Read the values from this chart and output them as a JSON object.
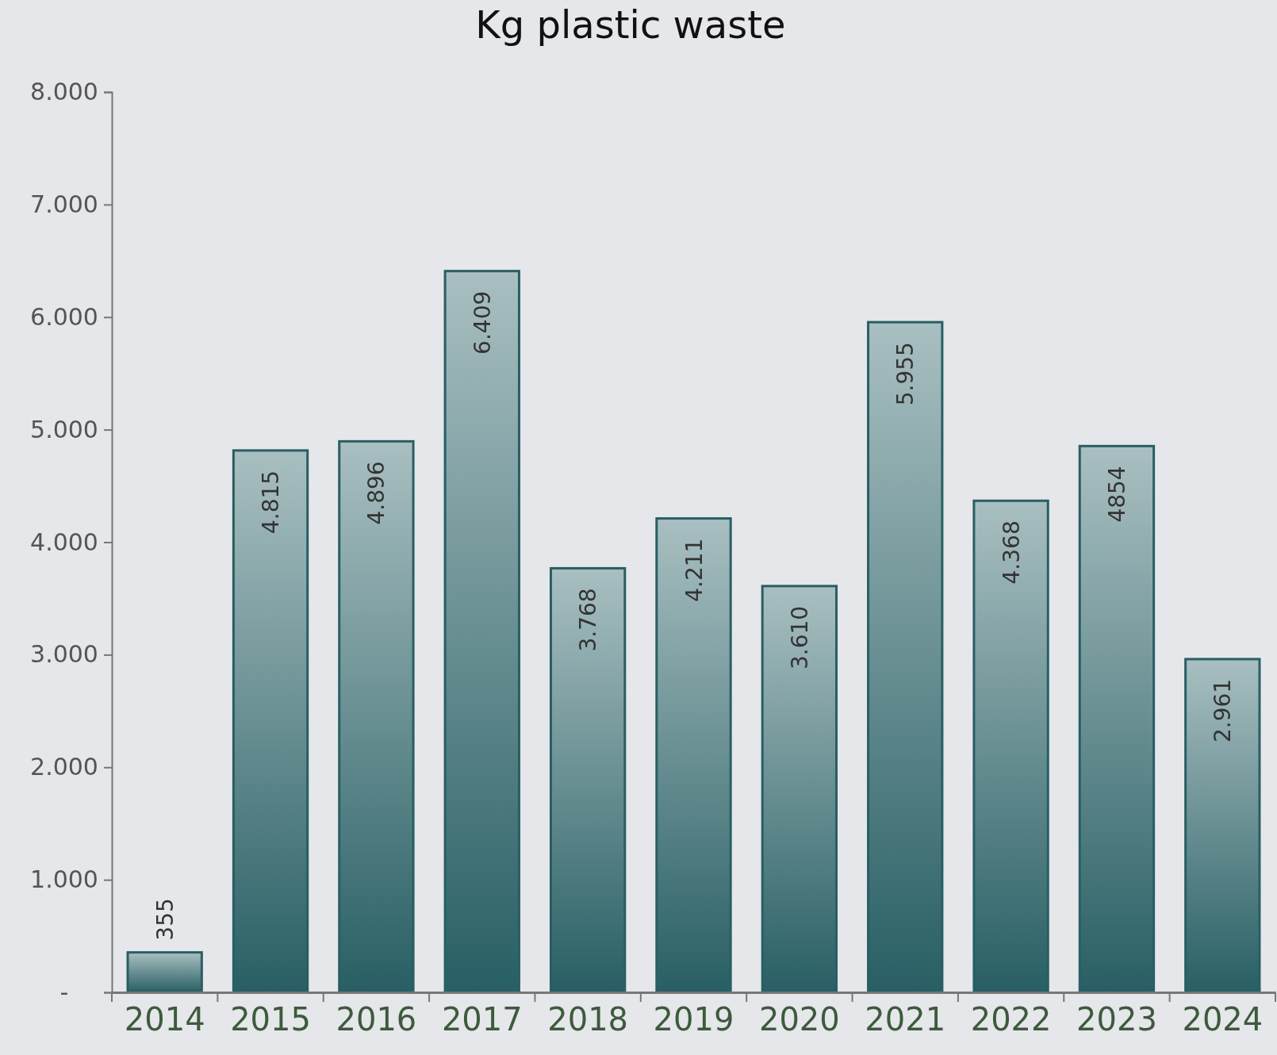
{
  "chart_data": {
    "type": "bar",
    "title": "Kg plastic waste",
    "categories": [
      "2014",
      "2015",
      "2016",
      "2017",
      "2018",
      "2019",
      "2020",
      "2021",
      "2022",
      "2023",
      "2024"
    ],
    "values": [
      355,
      4815,
      4896,
      6409,
      3768,
      4211,
      3610,
      5955,
      4368,
      4854,
      2961
    ],
    "value_labels": [
      "355",
      "4.815",
      "4.896",
      "6.409",
      "3.768",
      "4.211",
      "3.610",
      "5.955",
      "4.368",
      "4854",
      "2.961"
    ],
    "color": "#285f64",
    "ylim": [
      0,
      8000
    ],
    "yticks": [
      {
        "value": 0,
        "label": "-"
      },
      {
        "value": 1000,
        "label": "1.000"
      },
      {
        "value": 2000,
        "label": "2.000"
      },
      {
        "value": 3000,
        "label": "3.000"
      },
      {
        "value": 4000,
        "label": "4.000"
      },
      {
        "value": 5000,
        "label": "5.000"
      },
      {
        "value": 6000,
        "label": "6.000"
      },
      {
        "value": 7000,
        "label": "7.000"
      },
      {
        "value": 8000,
        "label": "8.000"
      }
    ]
  }
}
